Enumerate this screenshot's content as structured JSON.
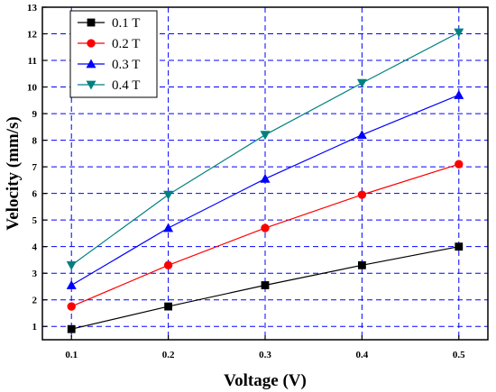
{
  "chart_data": {
    "type": "line",
    "xlabel": "Voltage (V)",
    "ylabel": "Velocity (mm/s)",
    "x": [
      0.1,
      0.2,
      0.3,
      0.4,
      0.5
    ],
    "x_tick_labels": [
      "0.1",
      "0.2",
      "0.3",
      "0.4",
      "0.5"
    ],
    "xlim": [
      0.07,
      0.53
    ],
    "ylim": [
      0.5,
      13
    ],
    "y_ticks": [
      1,
      2,
      3,
      4,
      5,
      6,
      7,
      8,
      9,
      10,
      11,
      12,
      13
    ],
    "y_tick_labels": [
      "1",
      "2",
      "3",
      "4",
      "5",
      "6",
      "7",
      "8",
      "9",
      "10",
      "11",
      "12",
      "13"
    ],
    "grid": true,
    "grid_style": "dashed",
    "legend_position": "top-left",
    "series": [
      {
        "name": "0.1 T",
        "color": "#000000",
        "marker": "square",
        "values": [
          0.9,
          1.75,
          2.55,
          3.3,
          4.0
        ]
      },
      {
        "name": "0.2 T",
        "color": "#ff0000",
        "marker": "circle",
        "values": [
          1.75,
          3.3,
          4.7,
          5.95,
          7.1
        ]
      },
      {
        "name": "0.3 T",
        "color": "#0000ff",
        "marker": "triangle-up",
        "values": [
          2.55,
          4.7,
          6.55,
          8.2,
          9.7
        ]
      },
      {
        "name": "0.4 T",
        "color": "#008080",
        "marker": "triangle-down",
        "values": [
          3.3,
          5.95,
          8.2,
          10.15,
          12.05
        ]
      }
    ]
  }
}
